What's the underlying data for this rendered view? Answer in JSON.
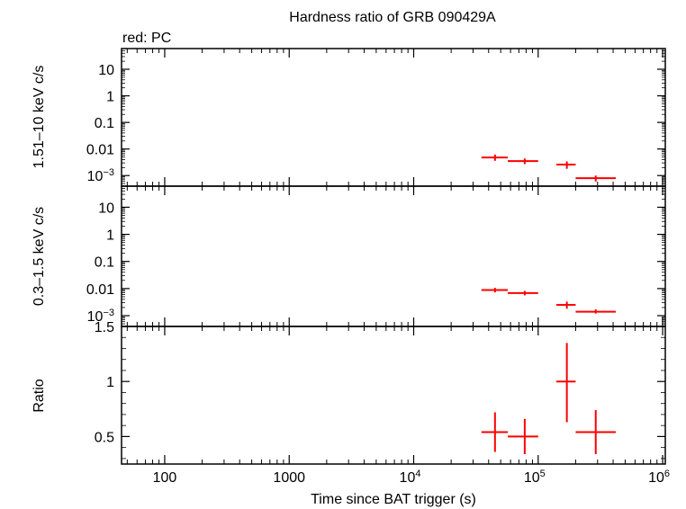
{
  "chart_data": {
    "type": "scatter",
    "title": "Hardness ratio of GRB 090429A",
    "legend": "red: PC",
    "xlabel": "Time since BAT trigger (s)",
    "x_scale": "log",
    "xlim": [
      45,
      1050000
    ],
    "x_ticks": [
      {
        "value": 100,
        "label": "100"
      },
      {
        "value": 1000,
        "label": "1000"
      },
      {
        "value": 10000,
        "label": "10",
        "exp": "4"
      },
      {
        "value": 100000,
        "label": "10",
        "exp": "5"
      },
      {
        "value": 1000000,
        "label": "10",
        "exp": "6"
      }
    ],
    "series_color": "#ff0000",
    "panels": [
      {
        "name": "hard",
        "ylabel": "1.51–10 keV c/s",
        "y_scale": "log",
        "ylim": [
          0.0004,
          60
        ],
        "y_ticks": [
          {
            "value": 10,
            "label": "10"
          },
          {
            "value": 1,
            "label": "1"
          },
          {
            "value": 0.1,
            "label": "0.1"
          },
          {
            "value": 0.01,
            "label": "0.01"
          },
          {
            "value": 0.001,
            "label": "10",
            "exp": "−3"
          }
        ],
        "points": [
          {
            "x": 45000,
            "xlo": 35000,
            "xhi": 57000,
            "y": 0.0048,
            "ylo": 0.0036,
            "yhi": 0.0062
          },
          {
            "x": 78000,
            "xlo": 57000,
            "xhi": 100000,
            "y": 0.0035,
            "ylo": 0.0027,
            "yhi": 0.0044
          },
          {
            "x": 170000,
            "xlo": 140000,
            "xhi": 200000,
            "y": 0.0026,
            "ylo": 0.0018,
            "yhi": 0.0034
          },
          {
            "x": 290000,
            "xlo": 200000,
            "xhi": 420000,
            "y": 0.0008,
            "ylo": 0.0006,
            "yhi": 0.001
          }
        ]
      },
      {
        "name": "soft",
        "ylabel": "0.3–1.5 keV c/s",
        "y_scale": "log",
        "ylim": [
          0.0004,
          60
        ],
        "y_ticks": [
          {
            "value": 10,
            "label": "10"
          },
          {
            "value": 1,
            "label": "1"
          },
          {
            "value": 0.1,
            "label": "0.1"
          },
          {
            "value": 0.01,
            "label": "0.01"
          },
          {
            "value": 0.001,
            "label": "10",
            "exp": "−3"
          }
        ],
        "points": [
          {
            "x": 45000,
            "xlo": 35000,
            "xhi": 57000,
            "y": 0.0088,
            "ylo": 0.0072,
            "yhi": 0.0106
          },
          {
            "x": 78000,
            "xlo": 57000,
            "xhi": 100000,
            "y": 0.0068,
            "ylo": 0.0056,
            "yhi": 0.0082
          },
          {
            "x": 170000,
            "xlo": 140000,
            "xhi": 200000,
            "y": 0.0025,
            "ylo": 0.0018,
            "yhi": 0.0033
          },
          {
            "x": 290000,
            "xlo": 200000,
            "xhi": 420000,
            "y": 0.0014,
            "ylo": 0.0012,
            "yhi": 0.0017
          }
        ]
      },
      {
        "name": "ratio",
        "ylabel": "Ratio",
        "y_scale": "linear",
        "ylim": [
          0.25,
          1.5
        ],
        "y_ticks": [
          {
            "value": 1.5,
            "label": "1.5"
          },
          {
            "value": 1,
            "label": "1"
          },
          {
            "value": 0.5,
            "label": "0.5"
          }
        ],
        "points": [
          {
            "x": 45000,
            "xlo": 35000,
            "xhi": 57000,
            "y": 0.54,
            "ylo": 0.36,
            "yhi": 0.72
          },
          {
            "x": 78000,
            "xlo": 57000,
            "xhi": 100000,
            "y": 0.5,
            "ylo": 0.34,
            "yhi": 0.66
          },
          {
            "x": 170000,
            "xlo": 140000,
            "xhi": 200000,
            "y": 1.0,
            "ylo": 0.63,
            "yhi": 1.35
          },
          {
            "x": 290000,
            "xlo": 200000,
            "xhi": 420000,
            "y": 0.54,
            "ylo": 0.34,
            "yhi": 0.74
          }
        ]
      }
    ]
  }
}
